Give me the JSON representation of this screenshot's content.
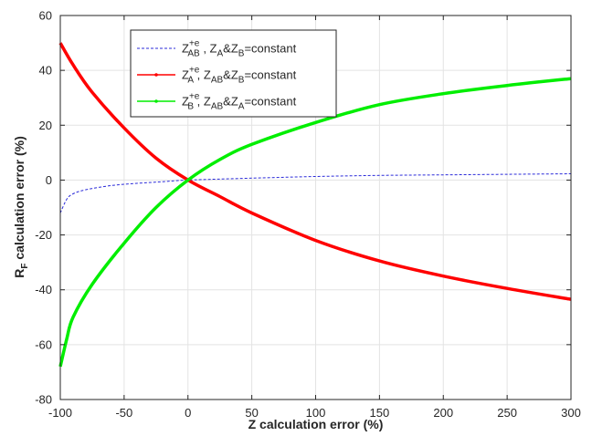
{
  "chart_data": {
    "type": "line",
    "xlabel": "Z calculation error (%)",
    "ylabel": {
      "main": "R",
      "sub": "F",
      "rest": " calculation error (%)"
    },
    "xlim": [
      -100,
      300
    ],
    "ylim": [
      -80,
      60
    ],
    "xticks": [
      -100,
      -50,
      0,
      50,
      100,
      150,
      200,
      250,
      300
    ],
    "yticks": [
      -80,
      -60,
      -40,
      -20,
      0,
      20,
      40,
      60
    ],
    "grid": true,
    "legend_position": "top-left",
    "series": [
      {
        "key": "ab",
        "color": "#2b2bd9",
        "style": "dashed",
        "legend": {
          "sym": "Z",
          "sub": "AB",
          "sup": "+e",
          "rest": [
            " , Z",
            "A",
            "&Z",
            "B",
            "=constant"
          ]
        },
        "x": [
          -100,
          -95,
          -90,
          -80,
          -60,
          -40,
          -20,
          0,
          50,
          100,
          150,
          200,
          250,
          300
        ],
        "y": [
          -12,
          -7,
          -5,
          -3.5,
          -2,
          -1.2,
          -0.6,
          0,
          0.7,
          1.3,
          1.7,
          1.9,
          2.1,
          2.3
        ]
      },
      {
        "key": "a",
        "color": "#ff0000",
        "style": "solid",
        "legend": {
          "sym": "Z",
          "sub": "A",
          "sup": "+e",
          "rest": [
            " , Z",
            "AB",
            "&Z",
            "B",
            "=constant"
          ]
        },
        "x": [
          -100,
          -90,
          -75,
          -50,
          -25,
          0,
          25,
          50,
          100,
          150,
          200,
          250,
          300
        ],
        "y": [
          50,
          42,
          32,
          19,
          8,
          0,
          -6,
          -12,
          -22,
          -29.5,
          -35,
          -39.5,
          -43.5
        ]
      },
      {
        "key": "b",
        "color": "#00ee00",
        "style": "solid",
        "legend": {
          "sym": "Z",
          "sub": "B",
          "sup": "+e",
          "rest": [
            " , Z",
            "AB",
            "&Z",
            "A",
            "=constant"
          ]
        },
        "x": [
          -100,
          -95,
          -90,
          -75,
          -50,
          -25,
          0,
          25,
          50,
          100,
          150,
          200,
          250,
          300
        ],
        "y": [
          -68,
          -58,
          -50,
          -38,
          -23,
          -10,
          0,
          7.5,
          13,
          21,
          27.5,
          31.5,
          34.5,
          37
        ]
      }
    ]
  }
}
